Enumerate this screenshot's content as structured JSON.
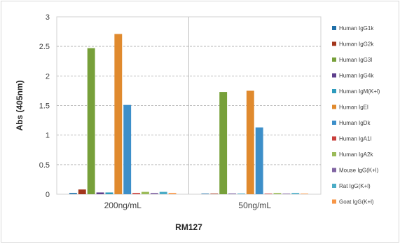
{
  "chart_data": {
    "type": "bar",
    "title": "",
    "xlabel": "RM127",
    "ylabel": "Abs (405nm)",
    "ylim": [
      0,
      3
    ],
    "yticks": [
      "0",
      "0.5",
      "1",
      "1.5",
      "2",
      "2.5",
      "3"
    ],
    "grid": true,
    "legend_position": "right",
    "categories": [
      "200ng/mL",
      "50ng/mL"
    ],
    "series": [
      {
        "name": "Human IgG1k",
        "color": "#1f6fa8",
        "values": [
          0.02,
          0.01
        ]
      },
      {
        "name": "Human IgG2k",
        "color": "#a3361c",
        "values": [
          0.08,
          0.01
        ]
      },
      {
        "name": "Human IgG3l",
        "color": "#77a03a",
        "values": [
          2.47,
          1.73
        ]
      },
      {
        "name": "Human IgG4k",
        "color": "#5e3f8c",
        "values": [
          0.03,
          0.01
        ]
      },
      {
        "name": "Human IgM(K+l)",
        "color": "#2e9bbd",
        "values": [
          0.03,
          0.01
        ]
      },
      {
        "name": "Human IgEl",
        "color": "#e08a2e",
        "values": [
          2.71,
          1.75
        ]
      },
      {
        "name": "Human IgDk",
        "color": "#3d8fc9",
        "values": [
          1.51,
          1.13
        ]
      },
      {
        "name": "Human IgA1l",
        "color": "#c9403c",
        "values": [
          0.02,
          0.01
        ]
      },
      {
        "name": "Human IgA2k",
        "color": "#9bbb59",
        "values": [
          0.04,
          0.02
        ]
      },
      {
        "name": "Mouse IgG(K+l)",
        "color": "#8064a2",
        "values": [
          0.02,
          0.01
        ]
      },
      {
        "name": "Rat IgG(K+l)",
        "color": "#4bacc6",
        "values": [
          0.04,
          0.02
        ]
      },
      {
        "name": "Goat IgG(K+l)",
        "color": "#f79646",
        "values": [
          0.02,
          0.01
        ]
      }
    ],
    "overrides_note": ""
  }
}
